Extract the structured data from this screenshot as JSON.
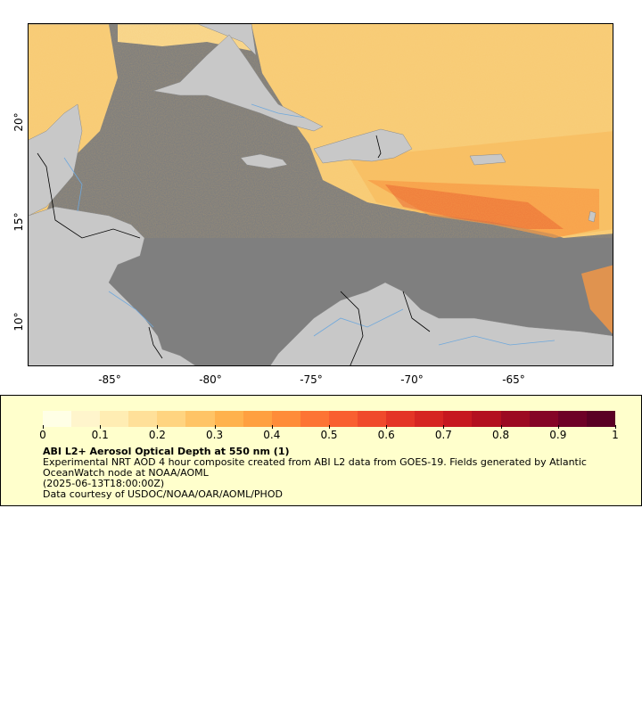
{
  "map": {
    "x_ticks": [
      "-85°",
      "-80°",
      "-75°",
      "-70°",
      "-65°"
    ],
    "y_ticks": [
      "20°",
      "15°",
      "10°"
    ],
    "colors": {
      "ocean": "#7f7f7f",
      "land": "#c8c8c8",
      "river": "#6fa8dc",
      "border": "#000000"
    }
  },
  "colorbar": {
    "ticks": [
      "0",
      "0.1",
      "0.2",
      "0.3",
      "0.4",
      "0.5",
      "0.6",
      "0.7",
      "0.8",
      "0.9",
      "1"
    ],
    "colors": [
      "#ffffe6",
      "#fff5cc",
      "#ffedb3",
      "#ffe099",
      "#ffd480",
      "#ffc466",
      "#ffb24d",
      "#ffa040",
      "#ff8c39",
      "#fd7434",
      "#f95f30",
      "#f04a2b",
      "#e43526",
      "#d62522",
      "#c6181f",
      "#b3101f",
      "#9c0a22",
      "#850526",
      "#6e0127",
      "#5a0024"
    ]
  },
  "legend": {
    "title": "ABI L2+ Aerosol Optical Depth at 550 nm (1)",
    "line1": "Experimental NRT AOD 4 hour composite created from ABI L2 data from GOES-19. Fields generated by Atlantic OceanWatch node at NOAA/AOML",
    "line2": "(2025-06-13T18:00:00Z)",
    "line3": "Data courtesy of USDOC/NOAA/OAR/AOML/PHOD"
  }
}
